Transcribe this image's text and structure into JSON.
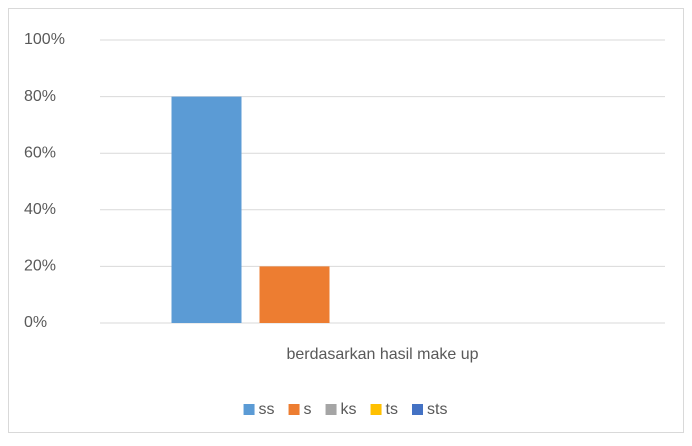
{
  "chart_data": {
    "type": "bar",
    "categories": [
      "berdasarkan hasil make up"
    ],
    "series": [
      {
        "name": "ss",
        "color": "#5b9bd5",
        "values": [
          80
        ]
      },
      {
        "name": "s",
        "color": "#ed7d31",
        "values": [
          20
        ]
      },
      {
        "name": "ks",
        "color": "#a5a5a5",
        "values": [
          0
        ]
      },
      {
        "name": "ts",
        "color": "#ffc000",
        "values": [
          0
        ]
      },
      {
        "name": "sts",
        "color": "#4472c4",
        "values": [
          0
        ]
      }
    ],
    "ylim": [
      0,
      100
    ],
    "yticks": [
      {
        "value": 0,
        "label": "0%"
      },
      {
        "value": 20,
        "label": "20%"
      },
      {
        "value": 40,
        "label": "40%"
      },
      {
        "value": 60,
        "label": "60%"
      },
      {
        "value": 80,
        "label": "80%"
      },
      {
        "value": 100,
        "label": "100%"
      }
    ],
    "grid": true,
    "legend": "bottom"
  }
}
